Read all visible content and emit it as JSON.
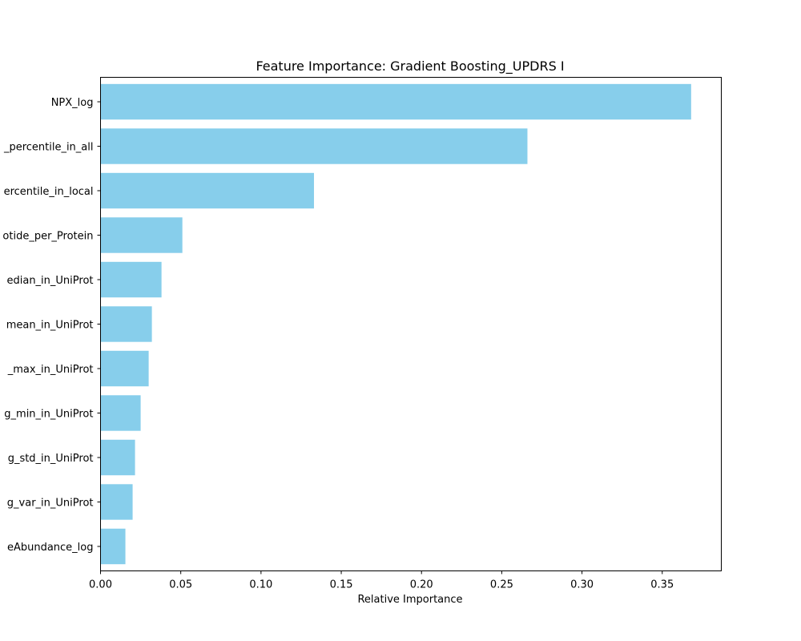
{
  "chart_data": {
    "type": "bar",
    "orientation": "horizontal",
    "title": "Feature Importance: Gradient Boosting_UPDRS I",
    "xlabel": "Relative Importance",
    "ylabel": "",
    "xlim": [
      0,
      0.3868
    ],
    "xticks": [
      0.0,
      0.05,
      0.1,
      0.15,
      0.2,
      0.25,
      0.3,
      0.35
    ],
    "xtick_labels": [
      "0.00",
      "0.05",
      "0.10",
      "0.15",
      "0.20",
      "0.25",
      "0.30",
      "0.35"
    ],
    "categories": [
      "NPX_log",
      "_percentile_in_all",
      "ercentile_in_local",
      "otide_per_Protein",
      "edian_in_UniProt",
      "mean_in_UniProt",
      "_max_in_UniProt",
      "g_min_in_UniProt",
      "g_std_in_UniProt",
      "g_var_in_UniProt",
      "eAbundance_log"
    ],
    "values": [
      0.368,
      0.266,
      0.133,
      0.051,
      0.038,
      0.032,
      0.03,
      0.025,
      0.0215,
      0.02,
      0.0155
    ],
    "color": "#87ceeb",
    "grid": false,
    "legend": "none"
  }
}
